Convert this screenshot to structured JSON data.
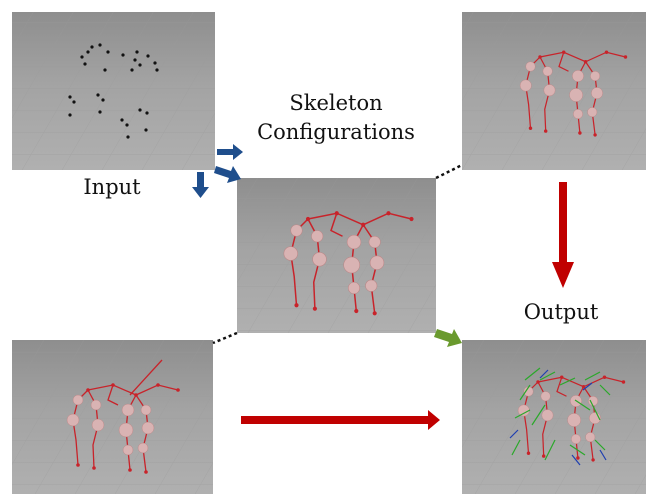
{
  "labels": {
    "skeleton": [
      "Skeleton",
      "Configurations"
    ],
    "input": "Input",
    "output": "Output"
  }
}
